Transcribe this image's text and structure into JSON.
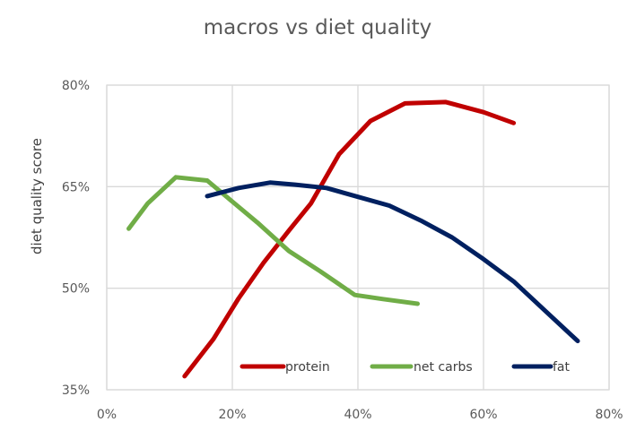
{
  "chart_data": {
    "type": "line",
    "title": "macros vs diet quality",
    "xlabel": "",
    "ylabel": "diet quality score",
    "xlim": [
      0,
      80
    ],
    "ylim": [
      35,
      80
    ],
    "x_ticks": [
      0,
      20,
      40,
      60,
      80
    ],
    "y_ticks": [
      35,
      50,
      65,
      80
    ],
    "x_tick_labels": [
      "0%",
      "20%",
      "40%",
      "60%",
      "80%"
    ],
    "y_tick_labels": [
      "35%",
      "50%",
      "65%",
      "80%"
    ],
    "grid": true,
    "legend_position": "bottom-inside",
    "series": [
      {
        "name": "protein",
        "color": "#c00000",
        "points": [
          [
            12.4,
            37.0
          ],
          [
            17.0,
            42.5
          ],
          [
            21.0,
            48.5
          ],
          [
            25.0,
            53.8
          ],
          [
            29.0,
            58.5
          ],
          [
            32.5,
            62.5
          ],
          [
            37.0,
            69.8
          ],
          [
            42.0,
            74.7
          ],
          [
            47.5,
            77.3
          ],
          [
            54.0,
            77.5
          ],
          [
            60.0,
            76.0
          ],
          [
            64.8,
            74.4
          ]
        ]
      },
      {
        "name": "net carbs",
        "color": "#70ad47",
        "points": [
          [
            3.5,
            58.8
          ],
          [
            6.5,
            62.5
          ],
          [
            11.0,
            66.4
          ],
          [
            16.0,
            65.9
          ],
          [
            20.0,
            62.8
          ],
          [
            24.0,
            59.7
          ],
          [
            29.0,
            55.5
          ],
          [
            34.0,
            52.5
          ],
          [
            39.5,
            49.0
          ],
          [
            44.0,
            48.4
          ],
          [
            49.5,
            47.7
          ]
        ]
      },
      {
        "name": "fat",
        "color": "#002060",
        "points": [
          [
            16.0,
            63.6
          ],
          [
            21.0,
            64.8
          ],
          [
            26.0,
            65.6
          ],
          [
            30.0,
            65.3
          ],
          [
            35.0,
            64.8
          ],
          [
            40.0,
            63.5
          ],
          [
            45.0,
            62.2
          ],
          [
            50.0,
            60.0
          ],
          [
            55.0,
            57.5
          ],
          [
            60.0,
            54.3
          ],
          [
            64.8,
            51.0
          ],
          [
            70.0,
            46.5
          ],
          [
            75.0,
            42.2
          ]
        ]
      }
    ]
  }
}
